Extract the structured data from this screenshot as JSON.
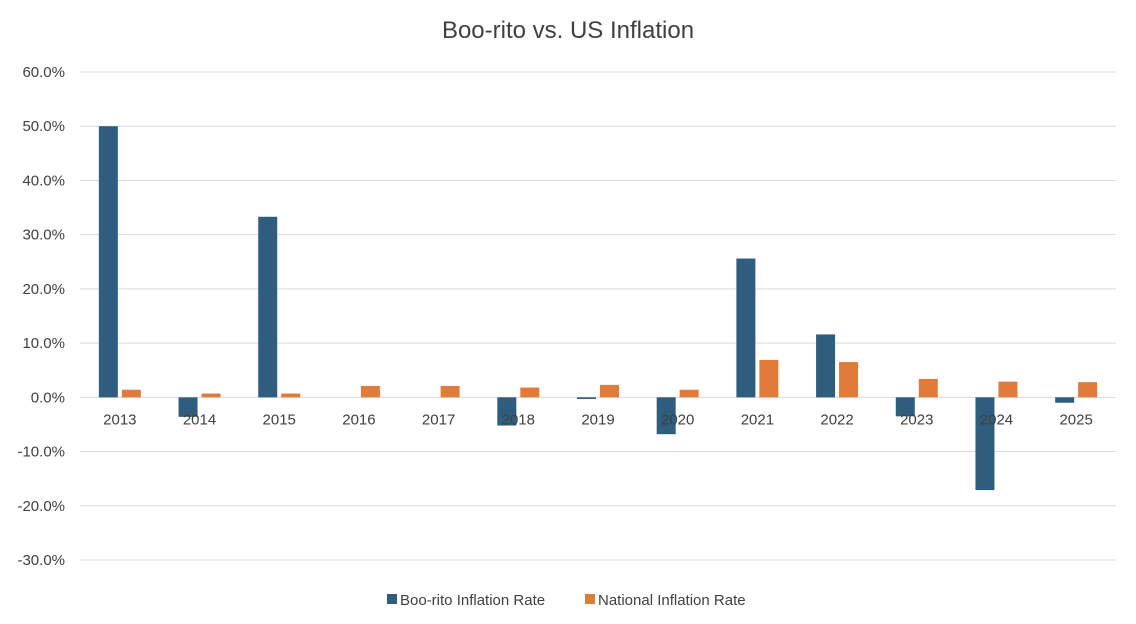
{
  "chart_data": {
    "type": "bar",
    "title": "Boo-rito vs. US Inflation",
    "xlabel": "",
    "ylabel": "",
    "categories": [
      "2013",
      "2014",
      "2015",
      "2016",
      "2017",
      "2018",
      "2019",
      "2020",
      "2021",
      "2022",
      "2023",
      "2024",
      "2025"
    ],
    "series": [
      {
        "name": "Boo-rito Inflation Rate",
        "color": "#2e5d7e",
        "values": [
          50.0,
          -3.6,
          33.3,
          0.0,
          0.0,
          -5.2,
          -0.3,
          -6.8,
          25.6,
          11.6,
          -3.5,
          -17.1,
          -1.0
        ]
      },
      {
        "name": "National Inflation Rate",
        "color": "#e07b39",
        "values": [
          1.4,
          0.7,
          0.7,
          2.1,
          2.1,
          1.8,
          2.3,
          1.4,
          6.9,
          6.5,
          3.4,
          2.9,
          2.8
        ]
      }
    ],
    "ylim": [
      -30,
      60
    ],
    "y_ticks": [
      60,
      50,
      40,
      30,
      20,
      10,
      0,
      -10,
      -20,
      -30
    ],
    "y_tick_labels": [
      "60.0%",
      "50.0%",
      "40.0%",
      "30.0%",
      "20.0%",
      "10.0%",
      "0.0%",
      "-10.0%",
      "-20.0%",
      "-30.0%"
    ],
    "grid": true,
    "legend_position": "bottom"
  }
}
